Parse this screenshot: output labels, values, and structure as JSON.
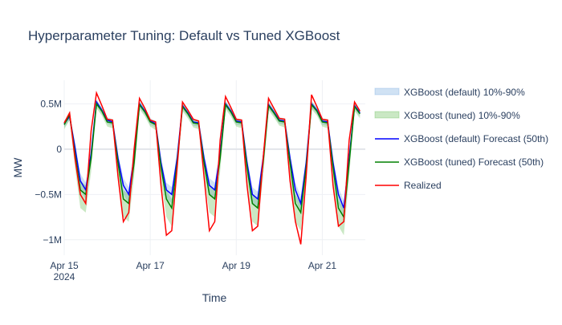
{
  "chart_data": {
    "type": "line",
    "title": "Hyperparameter Tuning: Default vs Tuned XGBoost",
    "x_label": "Time",
    "y_label": "MW",
    "x": [
      "2024-04-15T00:00",
      "2024-04-15T03:00",
      "2024-04-15T06:00",
      "2024-04-15T09:00",
      "2024-04-15T12:00",
      "2024-04-15T15:00",
      "2024-04-15T18:00",
      "2024-04-15T21:00",
      "2024-04-16T00:00",
      "2024-04-16T03:00",
      "2024-04-16T06:00",
      "2024-04-16T09:00",
      "2024-04-16T12:00",
      "2024-04-16T15:00",
      "2024-04-16T18:00",
      "2024-04-16T21:00",
      "2024-04-17T00:00",
      "2024-04-17T03:00",
      "2024-04-17T06:00",
      "2024-04-17T09:00",
      "2024-04-17T12:00",
      "2024-04-17T15:00",
      "2024-04-17T18:00",
      "2024-04-17T21:00",
      "2024-04-18T00:00",
      "2024-04-18T03:00",
      "2024-04-18T06:00",
      "2024-04-18T09:00",
      "2024-04-18T12:00",
      "2024-04-18T15:00",
      "2024-04-18T18:00",
      "2024-04-18T21:00",
      "2024-04-19T00:00",
      "2024-04-19T03:00",
      "2024-04-19T06:00",
      "2024-04-19T09:00",
      "2024-04-19T12:00",
      "2024-04-19T15:00",
      "2024-04-19T18:00",
      "2024-04-19T21:00",
      "2024-04-20T00:00",
      "2024-04-20T03:00",
      "2024-04-20T06:00",
      "2024-04-20T09:00",
      "2024-04-20T12:00",
      "2024-04-20T15:00",
      "2024-04-20T18:00",
      "2024-04-20T21:00",
      "2024-04-21T00:00",
      "2024-04-21T03:00",
      "2024-04-21T06:00",
      "2024-04-21T09:00",
      "2024-04-21T12:00",
      "2024-04-21T15:00",
      "2024-04-21T18:00",
      "2024-04-21T21:00"
    ],
    "bands": [
      {
        "name": "XGBoost (default) 10%-90%",
        "color": "rgba(100,160,220,0.3)",
        "lower": [
          240000,
          320000,
          -80000,
          -450000,
          -550000,
          -130000,
          480000,
          390000,
          280000,
          260000,
          -200000,
          -500000,
          -600000,
          -160000,
          460000,
          380000,
          270000,
          240000,
          -250000,
          -550000,
          -600000,
          -180000,
          440000,
          360000,
          260000,
          250000,
          -200000,
          -500000,
          -550000,
          -130000,
          460000,
          380000,
          270000,
          260000,
          -250000,
          -600000,
          -650000,
          -180000,
          450000,
          370000,
          280000,
          270000,
          -200000,
          -550000,
          -700000,
          -230000,
          460000,
          390000,
          270000,
          260000,
          -250000,
          -600000,
          -750000,
          -180000,
          440000,
          360000
        ],
        "upper": [
          310000,
          390000,
          80000,
          -270000,
          -370000,
          10000,
          550000,
          460000,
          350000,
          330000,
          -40000,
          -320000,
          -420000,
          -20000,
          530000,
          450000,
          340000,
          310000,
          -90000,
          -370000,
          -420000,
          -40000,
          510000,
          430000,
          330000,
          320000,
          -40000,
          -320000,
          -370000,
          10000,
          530000,
          450000,
          340000,
          330000,
          -90000,
          -420000,
          -470000,
          -40000,
          520000,
          440000,
          350000,
          340000,
          -40000,
          -370000,
          -520000,
          -90000,
          530000,
          460000,
          340000,
          330000,
          -90000,
          -420000,
          -570000,
          -40000,
          510000,
          430000
        ]
      },
      {
        "name": "XGBoost (tuned) 10%-90%",
        "color": "rgba(80,180,60,0.3)",
        "lower": [
          220000,
          320000,
          -200000,
          -650000,
          -700000,
          -250000,
          450000,
          370000,
          250000,
          230000,
          -300000,
          -750000,
          -800000,
          -300000,
          440000,
          360000,
          250000,
          210000,
          -350000,
          -750000,
          -850000,
          -300000,
          420000,
          340000,
          240000,
          220000,
          -300000,
          -700000,
          -750000,
          -250000,
          440000,
          360000,
          250000,
          230000,
          -350000,
          -800000,
          -850000,
          -300000,
          430000,
          350000,
          260000,
          240000,
          -300000,
          -800000,
          -900000,
          -350000,
          440000,
          370000,
          250000,
          230000,
          -350000,
          -850000,
          -950000,
          -300000,
          420000,
          340000
        ],
        "upper": [
          300000,
          420000,
          30000,
          -350000,
          -400000,
          -20000,
          540000,
          450000,
          330000,
          330000,
          -70000,
          -450000,
          -500000,
          -70000,
          530000,
          440000,
          330000,
          310000,
          -120000,
          -450000,
          -550000,
          -70000,
          510000,
          420000,
          320000,
          320000,
          -70000,
          -400000,
          -450000,
          -20000,
          530000,
          440000,
          330000,
          330000,
          -120000,
          -500000,
          -550000,
          -70000,
          520000,
          430000,
          340000,
          340000,
          -70000,
          -500000,
          -600000,
          -120000,
          530000,
          450000,
          330000,
          330000,
          -120000,
          -550000,
          -650000,
          -70000,
          510000,
          420000
        ]
      }
    ],
    "series": [
      {
        "name": "XGBoost (default) Forecast (50th)",
        "color": "#0000ff",
        "values": [
          280000,
          360000,
          20000,
          -350000,
          -450000,
          -50000,
          520000,
          430000,
          320000,
          300000,
          -100000,
          -400000,
          -500000,
          -80000,
          500000,
          420000,
          310000,
          280000,
          -150000,
          -450000,
          -500000,
          -100000,
          480000,
          400000,
          300000,
          290000,
          -100000,
          -400000,
          -450000,
          -50000,
          500000,
          420000,
          310000,
          300000,
          -150000,
          -500000,
          -550000,
          -100000,
          490000,
          410000,
          320000,
          310000,
          -100000,
          -450000,
          -600000,
          -150000,
          500000,
          430000,
          310000,
          300000,
          -150000,
          -500000,
          -650000,
          -100000,
          480000,
          400000
        ]
      },
      {
        "name": "XGBoost (tuned) Forecast (50th)",
        "color": "#008000",
        "values": [
          270000,
          380000,
          -50000,
          -450000,
          -500000,
          -100000,
          500000,
          420000,
          300000,
          290000,
          -150000,
          -550000,
          -600000,
          -150000,
          490000,
          410000,
          300000,
          270000,
          -200000,
          -550000,
          -650000,
          -150000,
          470000,
          390000,
          290000,
          280000,
          -150000,
          -500000,
          -550000,
          -100000,
          490000,
          410000,
          300000,
          290000,
          -200000,
          -600000,
          -650000,
          -150000,
          480000,
          400000,
          310000,
          300000,
          -150000,
          -600000,
          -700000,
          -200000,
          490000,
          420000,
          300000,
          290000,
          -200000,
          -650000,
          -750000,
          -150000,
          470000,
          390000
        ]
      },
      {
        "name": "Realized",
        "color": "#ff0000",
        "values": [
          290000,
          400000,
          -100000,
          -500000,
          -600000,
          200000,
          620000,
          480000,
          330000,
          320000,
          -300000,
          -800000,
          -700000,
          0,
          560000,
          450000,
          320000,
          300000,
          -400000,
          -950000,
          -900000,
          -200000,
          520000,
          430000,
          330000,
          310000,
          -300000,
          -900000,
          -800000,
          100000,
          580000,
          460000,
          330000,
          320000,
          -400000,
          -900000,
          -850000,
          -100000,
          560000,
          450000,
          340000,
          330000,
          -350000,
          -800000,
          -1050000,
          -300000,
          600000,
          470000,
          330000,
          320000,
          -400000,
          -850000,
          -800000,
          100000,
          520000,
          420000
        ]
      }
    ],
    "xlim": [
      "2024-04-15T00:00",
      "2024-04-22T00:00"
    ],
    "xticks": [
      {
        "value": "2024-04-15T00:00",
        "label": "Apr 15",
        "sublabel": "2024"
      },
      {
        "value": "2024-04-17T00:00",
        "label": "Apr 17"
      },
      {
        "value": "2024-04-19T00:00",
        "label": "Apr 19"
      },
      {
        "value": "2024-04-21T00:00",
        "label": "Apr 21"
      }
    ],
    "ylim": [
      -1170000,
      760000
    ],
    "yticks": [
      {
        "value": 500000,
        "label": "0.5M"
      },
      0,
      {
        "value": -500000,
        "label": "−0.5M"
      },
      {
        "value": -1000000,
        "label": "−1M"
      }
    ],
    "grid": true,
    "legend": "right"
  }
}
